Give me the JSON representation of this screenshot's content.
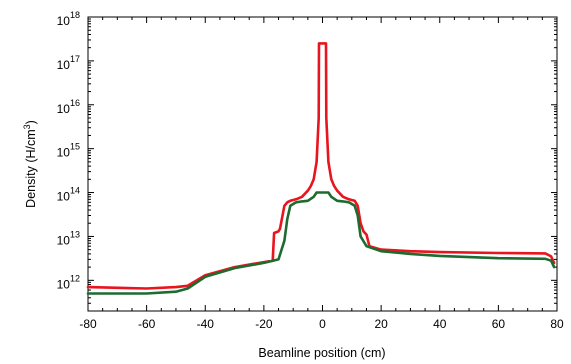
{
  "chart_data": {
    "type": "line",
    "title": "",
    "xlabel": "Beamline position (cm)",
    "ylabel": "Density (H/cm³)",
    "ylabel_main": "Density (H/cm",
    "ylabel_sup": "3",
    "ylabel_end": ")",
    "xlim": [
      -80,
      80
    ],
    "ylim": [
      200000000000.0,
      1e+18
    ],
    "yscale": "log",
    "xticks": [
      -80,
      -60,
      -40,
      -20,
      0,
      20,
      40,
      60,
      80
    ],
    "xtick_labels": [
      "-80",
      "-60",
      "-40",
      "-20",
      "0",
      "20",
      "40",
      "60",
      "80"
    ],
    "yticks": [
      1000000000000.0,
      10000000000000.0,
      100000000000000.0,
      1000000000000000.0,
      1e+16,
      1e+17,
      1e+18
    ],
    "ytick_exponents": [
      "12",
      "13",
      "14",
      "15",
      "16",
      "17",
      "18"
    ],
    "ytick_base": "10",
    "grid": false,
    "series": [
      {
        "color": "#e8141e",
        "x": [
          -80,
          -60,
          -50,
          -46,
          -40,
          -30,
          -20,
          -17,
          -16.5,
          -15,
          -14.5,
          -13,
          -12,
          -11,
          -9,
          -7,
          -5,
          -4,
          -3,
          -2,
          -1.3,
          -1.2,
          1.2,
          1.3,
          2,
          3,
          4,
          5,
          7,
          9,
          11,
          12,
          13,
          14,
          14.5,
          15,
          16,
          20,
          30,
          40,
          60,
          76,
          78,
          79
        ],
        "y": [
          700000000000.0,
          650000000000.0,
          700000000000.0,
          750000000000.0,
          1300000000000.0,
          2000000000000.0,
          2600000000000.0,
          2800000000000.0,
          12000000000000.0,
          13000000000000.0,
          15000000000000.0,
          50000000000000.0,
          60000000000000.0,
          65000000000000.0,
          70000000000000.0,
          80000000000000.0,
          110000000000000.0,
          140000000000000.0,
          200000000000000.0,
          500000000000000.0,
          5000000000000000.0,
          2.5e+17,
          2.5e+17,
          5000000000000000.0,
          500000000000000.0,
          200000000000000.0,
          140000000000000.0,
          110000000000000.0,
          80000000000000.0,
          70000000000000.0,
          65000000000000.0,
          50000000000000.0,
          20000000000000.0,
          13000000000000.0,
          12000000000000.0,
          11000000000000.0,
          6000000000000.0,
          5000000000000.0,
          4600000000000.0,
          4400000000000.0,
          4200000000000.0,
          4100000000000.0,
          3500000000000.0,
          2500000000000.0
        ]
      },
      {
        "color": "#1d6b2f",
        "x": [
          -80,
          -60,
          -50,
          -46,
          -40,
          -30,
          -20,
          -15,
          -13,
          -12,
          -11,
          -9,
          -7,
          -5,
          -3,
          -2,
          -1,
          1,
          2,
          3,
          5,
          7,
          9,
          11,
          12,
          13,
          15,
          20,
          30,
          40,
          60,
          76,
          78,
          79
        ],
        "y": [
          500000000000.0,
          500000000000.0,
          550000000000.0,
          650000000000.0,
          1200000000000.0,
          1900000000000.0,
          2500000000000.0,
          3000000000000.0,
          8000000000000.0,
          25000000000000.0,
          50000000000000.0,
          60000000000000.0,
          63000000000000.0,
          65000000000000.0,
          80000000000000.0,
          100000000000000.0,
          100000000000000.0,
          100000000000000.0,
          100000000000000.0,
          80000000000000.0,
          65000000000000.0,
          63000000000000.0,
          60000000000000.0,
          50000000000000.0,
          30000000000000.0,
          10000000000000.0,
          6000000000000.0,
          4600000000000.0,
          4000000000000.0,
          3600000000000.0,
          3200000000000.0,
          3100000000000.0,
          2800000000000.0,
          2000000000000.0
        ]
      }
    ]
  }
}
